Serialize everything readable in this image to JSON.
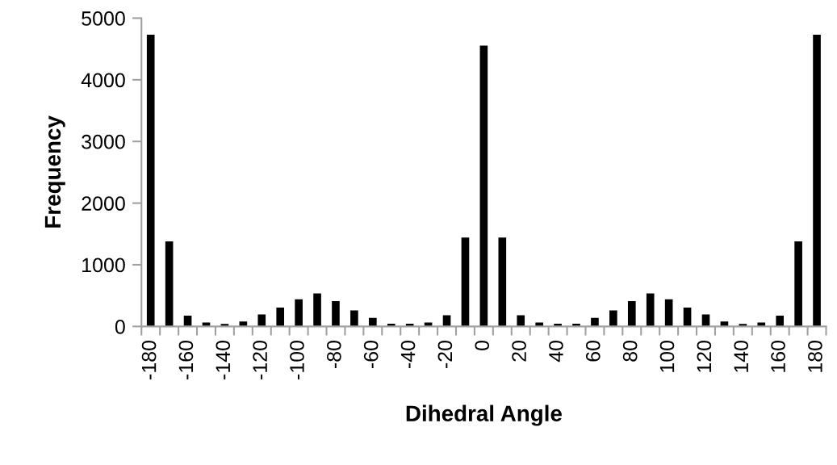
{
  "chart_data": {
    "type": "bar",
    "xlabel": "Dihedral Angle",
    "ylabel": "Frequency",
    "categories": [
      "-180",
      null,
      "-160",
      null,
      "-140",
      null,
      "-120",
      null,
      "-100",
      null,
      "-80",
      null,
      "-60",
      null,
      "-40",
      null,
      "-20",
      null,
      "0",
      null,
      "20",
      null,
      "40",
      null,
      "60",
      null,
      "80",
      null,
      "100",
      null,
      "120",
      null,
      "140",
      null,
      "160",
      null,
      "180"
    ],
    "values": [
      4730,
      1380,
      175,
      65,
      40,
      80,
      195,
      305,
      440,
      535,
      410,
      260,
      140,
      45,
      45,
      65,
      180,
      1440,
      4555,
      1440,
      180,
      65,
      45,
      45,
      140,
      260,
      410,
      535,
      440,
      305,
      195,
      80,
      40,
      65,
      175,
      1380,
      4730
    ],
    "color": "#000000",
    "ylim": [
      0,
      5000
    ],
    "yticks": [
      0,
      1000,
      2000,
      3000,
      4000,
      5000
    ],
    "grid": false,
    "legend": false
  }
}
